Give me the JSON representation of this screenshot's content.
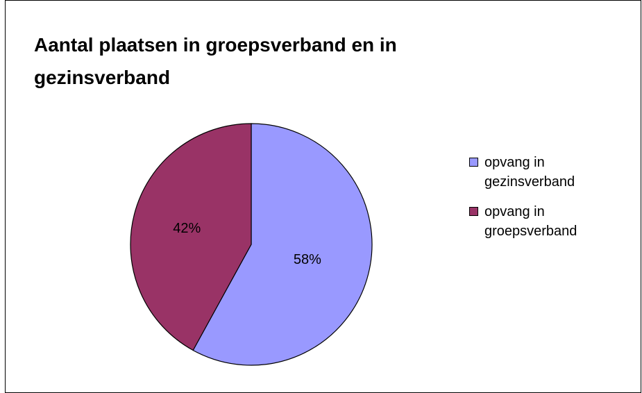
{
  "chart_data": {
    "type": "pie",
    "title": "Aantal plaatsen in groepsverband en in gezinsverband",
    "slices": [
      {
        "name": "opvang in gezinsverband",
        "value": 58,
        "label": "58%",
        "color": "#9999ff"
      },
      {
        "name": "opvang in groepsverband",
        "value": 42,
        "label": "42%",
        "color": "#993366"
      }
    ],
    "legend_position": "right"
  }
}
